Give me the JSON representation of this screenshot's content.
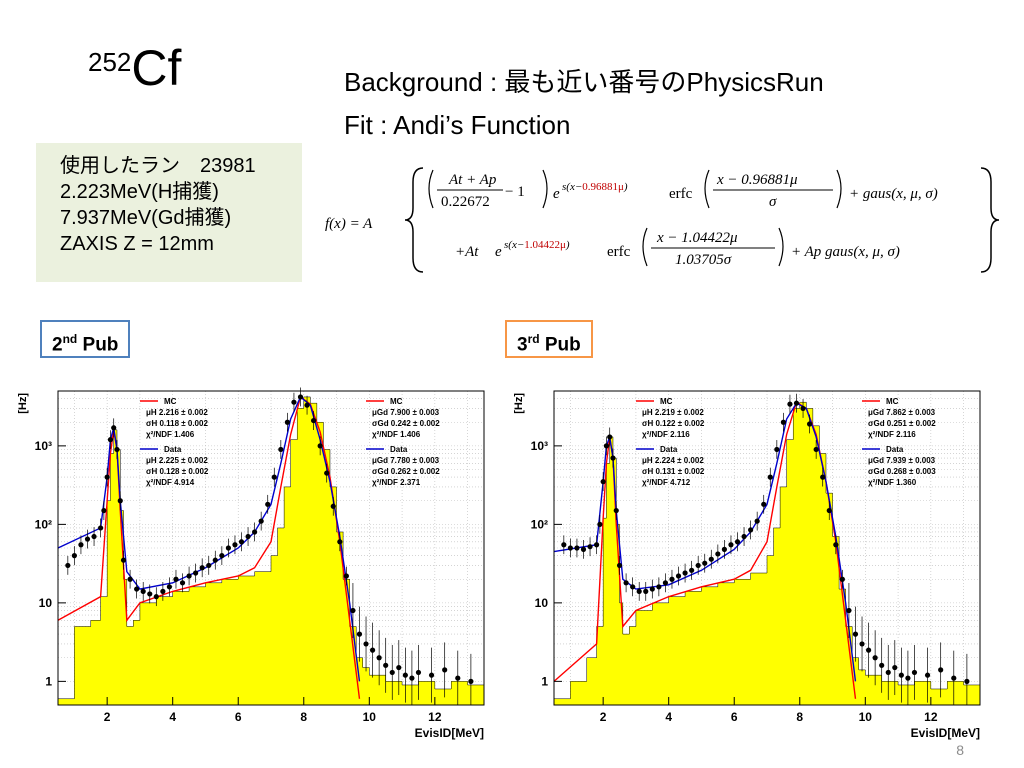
{
  "title": {
    "sup": "252",
    "main": "Cf"
  },
  "background_line": "Background : 最も近い番号のPhysicsRun",
  "fit_line": "Fit : Andi’s Function",
  "info_box": {
    "lines": [
      "使用したラン　23981",
      "2.223MeV(H捕獲)",
      "7.937MeV(Gd捕獲)",
      "ZAXIS Z = 12mm"
    ]
  },
  "formula": {
    "lhs": "f(x) = A",
    "row1": {
      "frac_num": "At + Ap",
      "frac_den": "0.22672",
      "minus_one": "− 1",
      "exp_base": "e",
      "exp_prefix": "s(x−",
      "exp_red": "0.96881μ",
      "exp_suffix": ")",
      "erfc": "erfc",
      "erfc_num": "x − 0.96881μ",
      "erfc_den": "σ",
      "tail": "+ gaus(x, μ, σ)"
    },
    "row2": {
      "lead": "+At",
      "exp_base": "e",
      "exp_prefix": "s(x−",
      "exp_red": "1.04422μ",
      "exp_suffix": ")",
      "erfc": "erfc",
      "erfc_num": "x − 1.04422μ",
      "erfc_den": "1.03705σ",
      "tail": "+ Ap gaus(x, μ, σ)"
    }
  },
  "pub2": {
    "num": "2",
    "sup": "nd",
    "label": "Pub"
  },
  "pub3": {
    "num": "3",
    "sup": "rd",
    "label": "Pub"
  },
  "page_number": "8",
  "colors": {
    "hist_fill": "#ffff00",
    "mc_line": "#ff0000",
    "data_line": "#0000cc",
    "points": "#000000",
    "pub2_border": "#4f81bd",
    "pub3_border": "#f79646",
    "infobox_bg": "#ebf1de"
  },
  "chart_data": [
    {
      "type": "scatter",
      "panel": "2nd Pub",
      "xlabel": "EvisID[MeV]",
      "ylabel": "[Hz]",
      "xlim": [
        0.5,
        13.5
      ],
      "ylim": [
        0.5,
        5000
      ],
      "log_y": true,
      "grid": true,
      "x_ticks": [
        2,
        4,
        6,
        8,
        10,
        12
      ],
      "y_ticks": [
        {
          "v": 1,
          "label": "1"
        },
        {
          "v": 10,
          "label": "10"
        },
        {
          "v": 100,
          "label": "10²"
        },
        {
          "v": 1000,
          "label": "10³"
        }
      ],
      "legend_left": {
        "mc_label": "MC",
        "mc_lines": [
          "μH  2.216 ± 0.002",
          "σH  0.118 ± 0.002",
          "χ²/NDF  1.406"
        ],
        "data_label": "Data",
        "data_lines": [
          "μH  2.225 ± 0.002",
          "σH  0.128 ± 0.002",
          "χ²/NDF  4.914"
        ]
      },
      "legend_right": {
        "mc_label": "MC",
        "mc_lines": [
          "μGd  7.900 ± 0.003",
          "σGd  0.242 ± 0.002",
          "χ²/NDF  1.406"
        ],
        "data_label": "Data",
        "data_lines": [
          "μGd  7.780 ± 0.003",
          "σGd  0.262 ± 0.002",
          "χ²/NDF  2.371"
        ]
      },
      "series": [
        {
          "name": "MC",
          "kind": "histogram",
          "x": [
            0.5,
            1.0,
            1.5,
            1.8,
            2.0,
            2.1,
            2.2,
            2.3,
            2.4,
            2.5,
            2.6,
            2.8,
            3.0,
            3.5,
            4.0,
            4.5,
            5.0,
            5.5,
            6.0,
            6.5,
            7.0,
            7.2,
            7.4,
            7.6,
            7.8,
            8.0,
            8.2,
            8.4,
            8.6,
            8.8,
            9.0,
            9.2,
            9.4,
            9.6,
            9.8,
            10.0,
            10.5,
            11.0,
            11.5,
            12.0,
            12.5,
            13.0,
            13.5
          ],
          "y": [
            0.6,
            5,
            6,
            12,
            200,
            800,
            1600,
            900,
            150,
            20,
            5,
            6,
            10,
            12,
            14,
            16,
            18,
            20,
            22,
            25,
            40,
            90,
            300,
            1200,
            3000,
            4200,
            3500,
            2000,
            900,
            300,
            80,
            20,
            5,
            2,
            1.5,
            1.2,
            1,
            0.9,
            1,
            0.8,
            1,
            0.9,
            0.8
          ]
        },
        {
          "name": "Data",
          "kind": "points",
          "x": [
            0.8,
            1.0,
            1.2,
            1.4,
            1.6,
            1.8,
            1.9,
            2.0,
            2.1,
            2.2,
            2.3,
            2.4,
            2.5,
            2.7,
            2.9,
            3.1,
            3.3,
            3.5,
            3.7,
            3.9,
            4.1,
            4.3,
            4.5,
            4.7,
            4.9,
            5.1,
            5.3,
            5.5,
            5.7,
            5.9,
            6.1,
            6.3,
            6.5,
            6.7,
            6.9,
            7.1,
            7.3,
            7.5,
            7.7,
            7.9,
            8.1,
            8.3,
            8.5,
            8.7,
            8.9,
            9.1,
            9.3,
            9.5,
            9.7,
            9.9,
            10.1,
            10.3,
            10.5,
            10.7,
            10.9,
            11.1,
            11.3,
            11.5,
            11.9,
            12.3,
            12.7,
            13.1
          ],
          "y": [
            30,
            40,
            55,
            65,
            70,
            90,
            150,
            400,
            1200,
            1700,
            900,
            200,
            35,
            20,
            15,
            14,
            13,
            12,
            14,
            16,
            20,
            18,
            22,
            24,
            28,
            30,
            35,
            40,
            50,
            55,
            60,
            70,
            80,
            110,
            180,
            400,
            900,
            2000,
            3600,
            4200,
            3300,
            2100,
            1000,
            450,
            170,
            60,
            22,
            8,
            4,
            3,
            2.5,
            2,
            1.6,
            1.3,
            1.5,
            1.2,
            1.1,
            1.3,
            1.2,
            1.4,
            1.1,
            1.0
          ]
        },
        {
          "name": "MC fit",
          "kind": "line",
          "x": [
            0.5,
            1.8,
            2.0,
            2.1,
            2.2,
            2.3,
            2.4,
            2.6,
            3.0,
            4.0,
            5.0,
            6.0,
            6.5,
            7.0,
            7.3,
            7.6,
            7.9,
            8.2,
            8.5,
            8.8,
            9.1,
            9.4,
            9.7
          ],
          "y": [
            6,
            12,
            200,
            800,
            1600,
            900,
            150,
            6,
            10,
            14,
            18,
            22,
            28,
            60,
            300,
            1400,
            4200,
            3400,
            1500,
            400,
            60,
            6,
            0.6
          ]
        },
        {
          "name": "Data fit",
          "kind": "line",
          "x": [
            0.5,
            1.8,
            2.0,
            2.1,
            2.2,
            2.3,
            2.4,
            2.6,
            3.0,
            4.0,
            5.0,
            6.0,
            6.5,
            7.0,
            7.3,
            7.6,
            7.9,
            8.2,
            8.5,
            8.8,
            9.1,
            9.4,
            9.7
          ],
          "y": [
            50,
            90,
            400,
            1200,
            1700,
            900,
            200,
            25,
            15,
            18,
            28,
            50,
            80,
            180,
            600,
            2200,
            4200,
            3300,
            1200,
            350,
            70,
            10,
            1
          ]
        }
      ]
    },
    {
      "type": "scatter",
      "panel": "3rd Pub",
      "xlabel": "EvisID[MeV]",
      "ylabel": "[Hz]",
      "xlim": [
        0.5,
        13.5
      ],
      "ylim": [
        0.5,
        5000
      ],
      "log_y": true,
      "grid": true,
      "x_ticks": [
        2,
        4,
        6,
        8,
        10,
        12
      ],
      "y_ticks": [
        {
          "v": 1,
          "label": "1"
        },
        {
          "v": 10,
          "label": "10"
        },
        {
          "v": 100,
          "label": "10²"
        },
        {
          "v": 1000,
          "label": "10³"
        }
      ],
      "legend_left": {
        "mc_label": "MC",
        "mc_lines": [
          "μH  2.219 ± 0.002",
          "σH  0.122 ± 0.002",
          "χ²/NDF  2.116"
        ],
        "data_label": "Data",
        "data_lines": [
          "μH  2.224 ± 0.002",
          "σH  0.131 ± 0.002",
          "χ²/NDF  4.712"
        ]
      },
      "legend_right": {
        "mc_label": "MC",
        "mc_lines": [
          "μGd  7.862 ± 0.003",
          "σGd  0.251 ± 0.002",
          "χ²/NDF  2.116"
        ],
        "data_label": "Data",
        "data_lines": [
          "μGd  7.939 ± 0.003",
          "σGd  0.268 ± 0.003",
          "χ²/NDF  1.360"
        ]
      },
      "series": [
        {
          "name": "MC",
          "kind": "histogram",
          "x": [
            0.5,
            1.0,
            1.5,
            1.8,
            2.0,
            2.1,
            2.2,
            2.3,
            2.4,
            2.5,
            2.6,
            2.8,
            3.0,
            3.5,
            4.0,
            4.5,
            5.0,
            5.5,
            6.0,
            6.5,
            7.0,
            7.2,
            7.4,
            7.6,
            7.8,
            8.0,
            8.2,
            8.4,
            8.6,
            8.8,
            9.0,
            9.2,
            9.4,
            9.6,
            9.8,
            10.0,
            10.5,
            11.0,
            11.5,
            12.0,
            12.5,
            13.0,
            13.5
          ],
          "y": [
            0.6,
            1,
            2,
            5,
            120,
            600,
            1300,
            700,
            100,
            10,
            4,
            5,
            8,
            10,
            12,
            14,
            16,
            18,
            20,
            24,
            40,
            90,
            300,
            1200,
            3000,
            3600,
            3000,
            1800,
            800,
            250,
            70,
            15,
            5,
            2,
            1.4,
            1.2,
            1,
            0.9,
            1,
            0.8,
            1,
            0.9,
            0.8
          ]
        },
        {
          "name": "Data",
          "kind": "points",
          "x": [
            0.8,
            1.0,
            1.2,
            1.4,
            1.6,
            1.8,
            1.9,
            2.0,
            2.1,
            2.2,
            2.3,
            2.4,
            2.5,
            2.7,
            2.9,
            3.1,
            3.3,
            3.5,
            3.7,
            3.9,
            4.1,
            4.3,
            4.5,
            4.7,
            4.9,
            5.1,
            5.3,
            5.5,
            5.7,
            5.9,
            6.1,
            6.3,
            6.5,
            6.7,
            6.9,
            7.1,
            7.3,
            7.5,
            7.7,
            7.9,
            8.1,
            8.3,
            8.5,
            8.7,
            8.9,
            9.1,
            9.3,
            9.5,
            9.7,
            9.9,
            10.1,
            10.3,
            10.5,
            10.7,
            10.9,
            11.1,
            11.3,
            11.5,
            11.9,
            12.3,
            12.7,
            13.1
          ],
          "y": [
            55,
            50,
            50,
            48,
            52,
            55,
            100,
            350,
            1000,
            1300,
            700,
            150,
            30,
            18,
            16,
            14,
            14,
            15,
            16,
            18,
            20,
            22,
            24,
            26,
            30,
            32,
            36,
            42,
            48,
            55,
            60,
            70,
            85,
            110,
            180,
            400,
            900,
            2000,
            3400,
            3500,
            3000,
            1900,
            900,
            400,
            150,
            55,
            20,
            8,
            4,
            3,
            2.5,
            2,
            1.6,
            1.3,
            1.5,
            1.2,
            1.1,
            1.3,
            1.2,
            1.4,
            1.1,
            1.0
          ]
        },
        {
          "name": "MC fit",
          "kind": "line",
          "x": [
            0.5,
            1.8,
            2.0,
            2.1,
            2.2,
            2.3,
            2.4,
            2.6,
            3.0,
            4.0,
            5.0,
            6.0,
            6.5,
            7.0,
            7.3,
            7.6,
            7.9,
            8.2,
            8.5,
            8.8,
            9.1,
            9.4,
            9.7
          ],
          "y": [
            1,
            3,
            120,
            600,
            1300,
            700,
            100,
            5,
            8,
            12,
            16,
            20,
            26,
            60,
            300,
            1400,
            3600,
            3000,
            1400,
            350,
            60,
            6,
            0.6
          ]
        },
        {
          "name": "Data fit",
          "kind": "line",
          "x": [
            0.5,
            1.8,
            2.0,
            2.1,
            2.2,
            2.3,
            2.4,
            2.6,
            3.0,
            4.0,
            5.0,
            6.0,
            6.5,
            7.0,
            7.3,
            7.6,
            7.9,
            8.2,
            8.5,
            8.8,
            9.1,
            9.4,
            9.7
          ],
          "y": [
            45,
            55,
            350,
            1000,
            1300,
            700,
            150,
            20,
            15,
            17,
            26,
            48,
            80,
            180,
            600,
            2200,
            3500,
            3000,
            1300,
            350,
            70,
            10,
            1
          ]
        }
      ]
    }
  ]
}
